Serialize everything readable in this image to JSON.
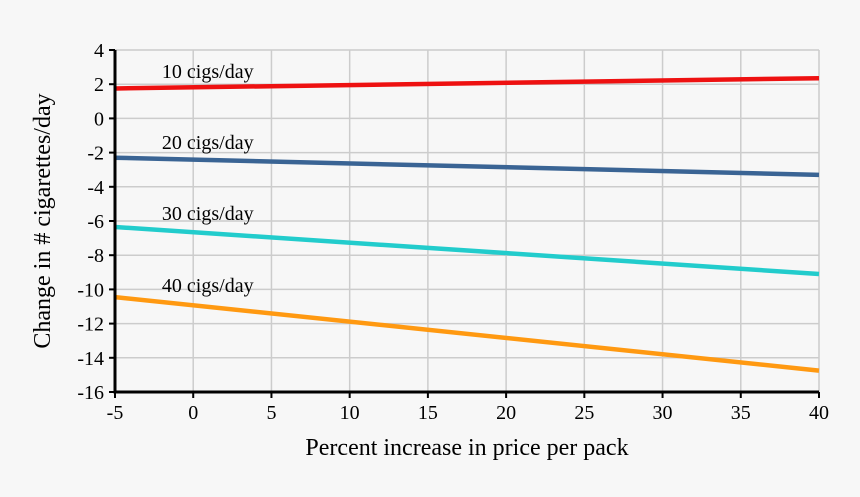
{
  "chart_data": {
    "type": "line",
    "title": "",
    "xlabel": "Percent increase in price per pack",
    "ylabel": "Change in # cigarettes/day",
    "xlim": [
      -5,
      40
    ],
    "ylim": [
      -16,
      4
    ],
    "x_ticks": [
      -5,
      0,
      5,
      10,
      15,
      20,
      25,
      30,
      35,
      40
    ],
    "y_ticks": [
      4,
      2,
      0,
      -2,
      -4,
      -6,
      -8,
      -10,
      -12,
      -14,
      -16
    ],
    "x_tick_labels": [
      "-5",
      "0",
      "5",
      "10",
      "15",
      "20",
      "25",
      "30",
      "35",
      "40"
    ],
    "y_tick_labels": [
      "4",
      "2",
      "0",
      "-2",
      "-4",
      "-6",
      "-8",
      "-10",
      "-12",
      "-14",
      "-16"
    ],
    "grid": true,
    "series": [
      {
        "name": "10 cigs/day",
        "label": "10 cigs/day",
        "color": "#ee1111",
        "x": [
          -5,
          40
        ],
        "y": [
          1.75,
          2.35
        ],
        "label_x": -2
      },
      {
        "name": "20 cigs/day",
        "label": "20 cigs/day",
        "color": "#3a6494",
        "x": [
          -5,
          40
        ],
        "y": [
          -2.3,
          -3.3
        ],
        "label_x": -2
      },
      {
        "name": "30 cigs/day",
        "label": "30 cigs/day",
        "color": "#22cccc",
        "x": [
          -5,
          40
        ],
        "y": [
          -6.35,
          -9.1
        ],
        "label_x": -2
      },
      {
        "name": "40 cigs/day",
        "label": "40 cigs/day",
        "color": "#ff9911",
        "x": [
          -5,
          40
        ],
        "y": [
          -10.45,
          -14.75
        ],
        "label_x": -2
      }
    ]
  }
}
